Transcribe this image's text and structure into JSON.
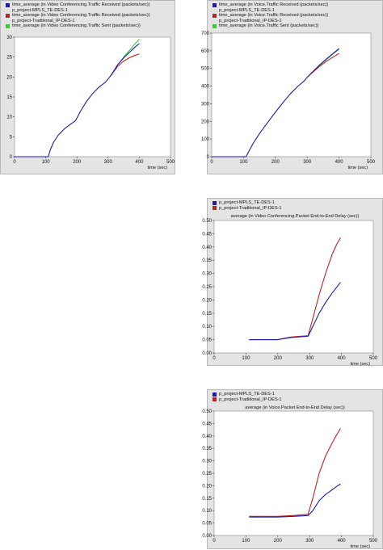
{
  "chart_data": [
    {
      "type": "line",
      "legend": [
        {
          "label": "time_average (in Video Conferencing.Traffic Received (packets/sec))",
          "color": "#1b1bb3"
        },
        {
          "label": "p_project-MPLS_TE-DES-1",
          "color": null
        },
        {
          "label": "time_average (in Video Conferencing.Traffic Received (packets/sec))",
          "color": "#c42020"
        },
        {
          "label": "p_project-Traditional_IP-DES-1",
          "color": null
        },
        {
          "label": "time_average (in Video Conferencing.Traffic Sent (packets/sec))",
          "color": "#33cc33"
        }
      ],
      "title": "",
      "xlabel": "time (sec)",
      "xlim": [
        0,
        500
      ],
      "ylim": [
        0,
        30
      ],
      "xticks": [
        0,
        100,
        200,
        300,
        400,
        500
      ],
      "yticks": [
        0,
        5,
        10,
        15,
        20,
        25,
        30
      ],
      "series": [
        {
          "color": "#33cc33",
          "points": [
            [
              310,
              20.5
            ],
            [
              330,
              23
            ],
            [
              350,
              25
            ],
            [
              370,
              26.8
            ],
            [
              385,
              28.2
            ],
            [
              400,
              29.5
            ]
          ]
        },
        {
          "color": "#c42020",
          "points": [
            [
              310,
              20.5
            ],
            [
              330,
              22.6
            ],
            [
              350,
              24
            ],
            [
              370,
              24.9
            ],
            [
              385,
              25.4
            ],
            [
              400,
              25.8
            ]
          ]
        },
        {
          "color": "#1b1bb3",
          "points": [
            [
              0,
              0
            ],
            [
              108,
              0
            ],
            [
              115,
              1.8
            ],
            [
              125,
              3.6
            ],
            [
              140,
              5.4
            ],
            [
              160,
              7
            ],
            [
              180,
              8.2
            ],
            [
              195,
              9
            ],
            [
              210,
              11.2
            ],
            [
              230,
              13.8
            ],
            [
              250,
              15.8
            ],
            [
              270,
              17.4
            ],
            [
              290,
              18.6
            ],
            [
              300,
              19.5
            ],
            [
              310,
              20.5
            ],
            [
              330,
              23
            ],
            [
              350,
              24.8
            ],
            [
              370,
              26.3
            ],
            [
              385,
              27.4
            ],
            [
              400,
              28.4
            ]
          ]
        }
      ]
    },
    {
      "type": "line",
      "legend": [
        {
          "label": "time_average (in Voice.Traffic Received (packets/sec))",
          "color": "#1b1bb3"
        },
        {
          "label": "p_project-MPLS_TE-DES-1",
          "color": null
        },
        {
          "label": "time_average (in Voice.Traffic Received (packets/sec))",
          "color": "#c42020"
        },
        {
          "label": "p_project-Traditional_IP-DES-1",
          "color": null
        },
        {
          "label": "time_average (in Voice.Traffic Sent (packets/sec))",
          "color": "#33cc33"
        }
      ],
      "title": "",
      "xlabel": "time (sec)",
      "xlim": [
        0,
        500
      ],
      "ylim": [
        0,
        700
      ],
      "xticks": [
        0,
        100,
        200,
        300,
        400,
        500
      ],
      "yticks": [
        0,
        100,
        200,
        300,
        400,
        500,
        600,
        700
      ],
      "series": [
        {
          "color": "#33cc33",
          "points": [
            [
              300,
              450
            ],
            [
              320,
              485
            ],
            [
              340,
              520
            ],
            [
              360,
              550
            ],
            [
              380,
              580
            ],
            [
              400,
              608
            ]
          ]
        },
        {
          "color": "#c42020",
          "points": [
            [
              300,
              450
            ],
            [
              320,
              482
            ],
            [
              340,
              513
            ],
            [
              360,
              540
            ],
            [
              380,
              563
            ],
            [
              400,
              585
            ]
          ]
        },
        {
          "color": "#1b1bb3",
          "points": [
            [
              0,
              0
            ],
            [
              108,
              0
            ],
            [
              115,
              25
            ],
            [
              130,
              75
            ],
            [
              150,
              130
            ],
            [
              170,
              180
            ],
            [
              190,
              228
            ],
            [
              210,
              275
            ],
            [
              230,
              320
            ],
            [
              250,
              362
            ],
            [
              270,
              398
            ],
            [
              290,
              428
            ],
            [
              300,
              450
            ],
            [
              320,
              486
            ],
            [
              340,
              522
            ],
            [
              360,
              553
            ],
            [
              380,
              583
            ],
            [
              400,
              612
            ]
          ]
        }
      ]
    },
    {
      "type": "line",
      "legend": [
        {
          "label": "p_project-MPLS_TE-DES-1",
          "color": "#1b1bb3"
        },
        {
          "label": "p_project-Traditional_IP-DES-1",
          "color": "#c42020"
        }
      ],
      "title": "average (in Video Conferencing.Packet End-to-End Delay (sec))",
      "xlabel": "time (sec)",
      "xlim": [
        0,
        500
      ],
      "ylim": [
        0,
        0.5
      ],
      "xticks": [
        0,
        100,
        200,
        300,
        400,
        500
      ],
      "yticks": [
        "0.00",
        "0.05",
        "0.10",
        "0.15",
        "0.20",
        "0.25",
        "0.30",
        "0.35",
        "0.40",
        "0.45",
        "0.50"
      ],
      "series": [
        {
          "color": "#c42020",
          "points": [
            [
              110,
              0.05
            ],
            [
              200,
              0.05
            ],
            [
              240,
              0.06
            ],
            [
              295,
              0.065
            ],
            [
              310,
              0.13
            ],
            [
              330,
              0.22
            ],
            [
              350,
              0.3
            ],
            [
              370,
              0.37
            ],
            [
              385,
              0.41
            ],
            [
              397,
              0.435
            ]
          ]
        },
        {
          "color": "#1b1bb3",
          "points": [
            [
              110,
              0.05
            ],
            [
              200,
              0.05
            ],
            [
              240,
              0.058
            ],
            [
              295,
              0.063
            ],
            [
              310,
              0.1
            ],
            [
              330,
              0.15
            ],
            [
              350,
              0.19
            ],
            [
              370,
              0.225
            ],
            [
              385,
              0.248
            ],
            [
              397,
              0.267
            ]
          ]
        }
      ]
    },
    {
      "type": "line",
      "legend": [
        {
          "label": "p_project-MPLS_TE-DES-1",
          "color": "#1b1bb3"
        },
        {
          "label": "p_project-Traditional_IP-DES-1",
          "color": "#c42020"
        }
      ],
      "title": "average (in Voice.Packet End-to-End Delay (sec))",
      "xlabel": "time (sec)",
      "xlim": [
        0,
        500
      ],
      "ylim": [
        0,
        0.5
      ],
      "xticks": [
        0,
        100,
        200,
        300,
        400,
        500
      ],
      "yticks": [
        "0.00",
        "0.05",
        "0.10",
        "0.15",
        "0.20",
        "0.25",
        "0.30",
        "0.35",
        "0.40",
        "0.45",
        "0.50"
      ],
      "series": [
        {
          "color": "#c42020",
          "points": [
            [
              110,
              0.077
            ],
            [
              200,
              0.077
            ],
            [
              250,
              0.08
            ],
            [
              295,
              0.085
            ],
            [
              310,
              0.15
            ],
            [
              330,
              0.25
            ],
            [
              350,
              0.32
            ],
            [
              370,
              0.37
            ],
            [
              385,
              0.405
            ],
            [
              397,
              0.43
            ]
          ]
        },
        {
          "color": "#1b1bb3",
          "points": [
            [
              110,
              0.074
            ],
            [
              200,
              0.074
            ],
            [
              250,
              0.077
            ],
            [
              295,
              0.08
            ],
            [
              310,
              0.1
            ],
            [
              330,
              0.14
            ],
            [
              350,
              0.165
            ],
            [
              370,
              0.183
            ],
            [
              385,
              0.197
            ],
            [
              397,
              0.207
            ]
          ]
        }
      ]
    }
  ]
}
